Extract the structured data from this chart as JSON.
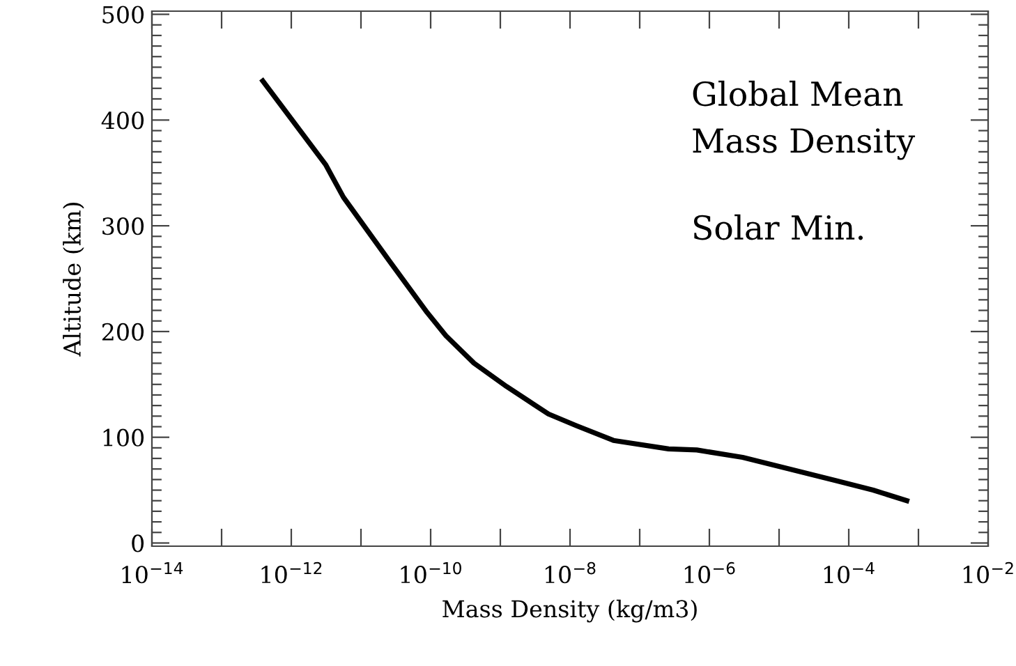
{
  "chart_data": {
    "type": "line",
    "xlabel": "Mass Density (kg/m3)",
    "ylabel": "Altitude (km)",
    "log": "x",
    "xlim": [
      1e-14,
      0.01
    ],
    "xticks": [
      {
        "value": 1e-14,
        "label": "10$^{−14}$"
      },
      {
        "value": 1e-13,
        "label": null
      },
      {
        "value": 1e-12,
        "label": "10$^{−12}$"
      },
      {
        "value": 1e-11,
        "label": null
      },
      {
        "value": 1e-10,
        "label": "10$^{−10}$"
      },
      {
        "value": 1e-09,
        "label": null
      },
      {
        "value": 1e-08,
        "label": "10$^{−8}$"
      },
      {
        "value": 1e-07,
        "label": null
      },
      {
        "value": 1e-06,
        "label": "10$^{−6}$"
      },
      {
        "value": 1e-05,
        "label": null
      },
      {
        "value": 0.0001,
        "label": "10$^{−4}$"
      },
      {
        "value": 0.001,
        "label": null
      },
      {
        "value": 0.01,
        "label": "10$^{−2}$"
      }
    ],
    "ylim": [
      -3,
      503
    ],
    "yticks": [
      0,
      100,
      200,
      300,
      400,
      500
    ],
    "grid": false,
    "marker": "none",
    "line_style": "solid",
    "annotations": [
      "Global Mean\nMass Density",
      "Solar Min."
    ],
    "series": [
      {
        "color": "#000000",
        "x": [
          3.9e-13,
          3.1e-12,
          5.6e-12,
          2.6e-11,
          8.9e-11,
          1.66e-10,
          4.2e-10,
          1.23e-09,
          4.9e-09,
          1.23e-08,
          4.2e-08,
          2.6e-07,
          6.6e-07,
          3e-06,
          1.41e-05,
          6.6e-05,
          0.000224,
          0.00068
        ],
        "values": [
          437,
          358,
          327,
          266,
          218,
          196,
          170,
          148,
          122,
          111,
          97,
          89,
          88,
          81,
          70,
          59,
          50,
          40
        ]
      }
    ]
  }
}
